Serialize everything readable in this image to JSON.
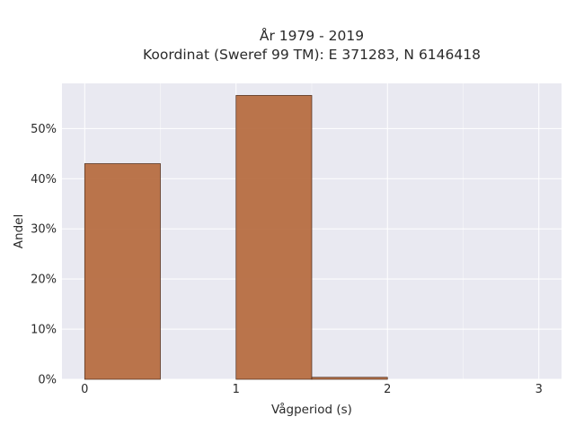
{
  "chart_data": {
    "type": "bar",
    "title_line1": "År 1979 - 2019",
    "title_line2": "Koordinat (Sweref 99 TM): E 371283, N 6146418",
    "xlabel": "Vågperiod (s)",
    "ylabel": "Andel",
    "xlim": [
      -0.15,
      3.15
    ],
    "ylim": [
      0,
      0.59
    ],
    "x_ticks": [
      0,
      1,
      2,
      3
    ],
    "x_tick_labels": [
      "0",
      "1",
      "2",
      "3"
    ],
    "y_ticks": [
      0,
      0.1,
      0.2,
      0.3,
      0.4,
      0.5
    ],
    "y_tick_labels": [
      "0%",
      "10%",
      "20%",
      "30%",
      "40%",
      "50%"
    ],
    "bin_width": 0.5,
    "bins": [
      {
        "x0": 0.0,
        "x1": 0.5,
        "value": 0.43
      },
      {
        "x0": 1.0,
        "x1": 1.5,
        "value": 0.566
      },
      {
        "x0": 1.5,
        "x1": 2.0,
        "value": 0.004
      }
    ],
    "grid": true,
    "legend": "none",
    "colors": {
      "bar_fill": "#b5693d",
      "bar_stroke": "#4a2a1a",
      "plot_bg": "#e9e9f1",
      "grid": "#ffffff"
    }
  }
}
